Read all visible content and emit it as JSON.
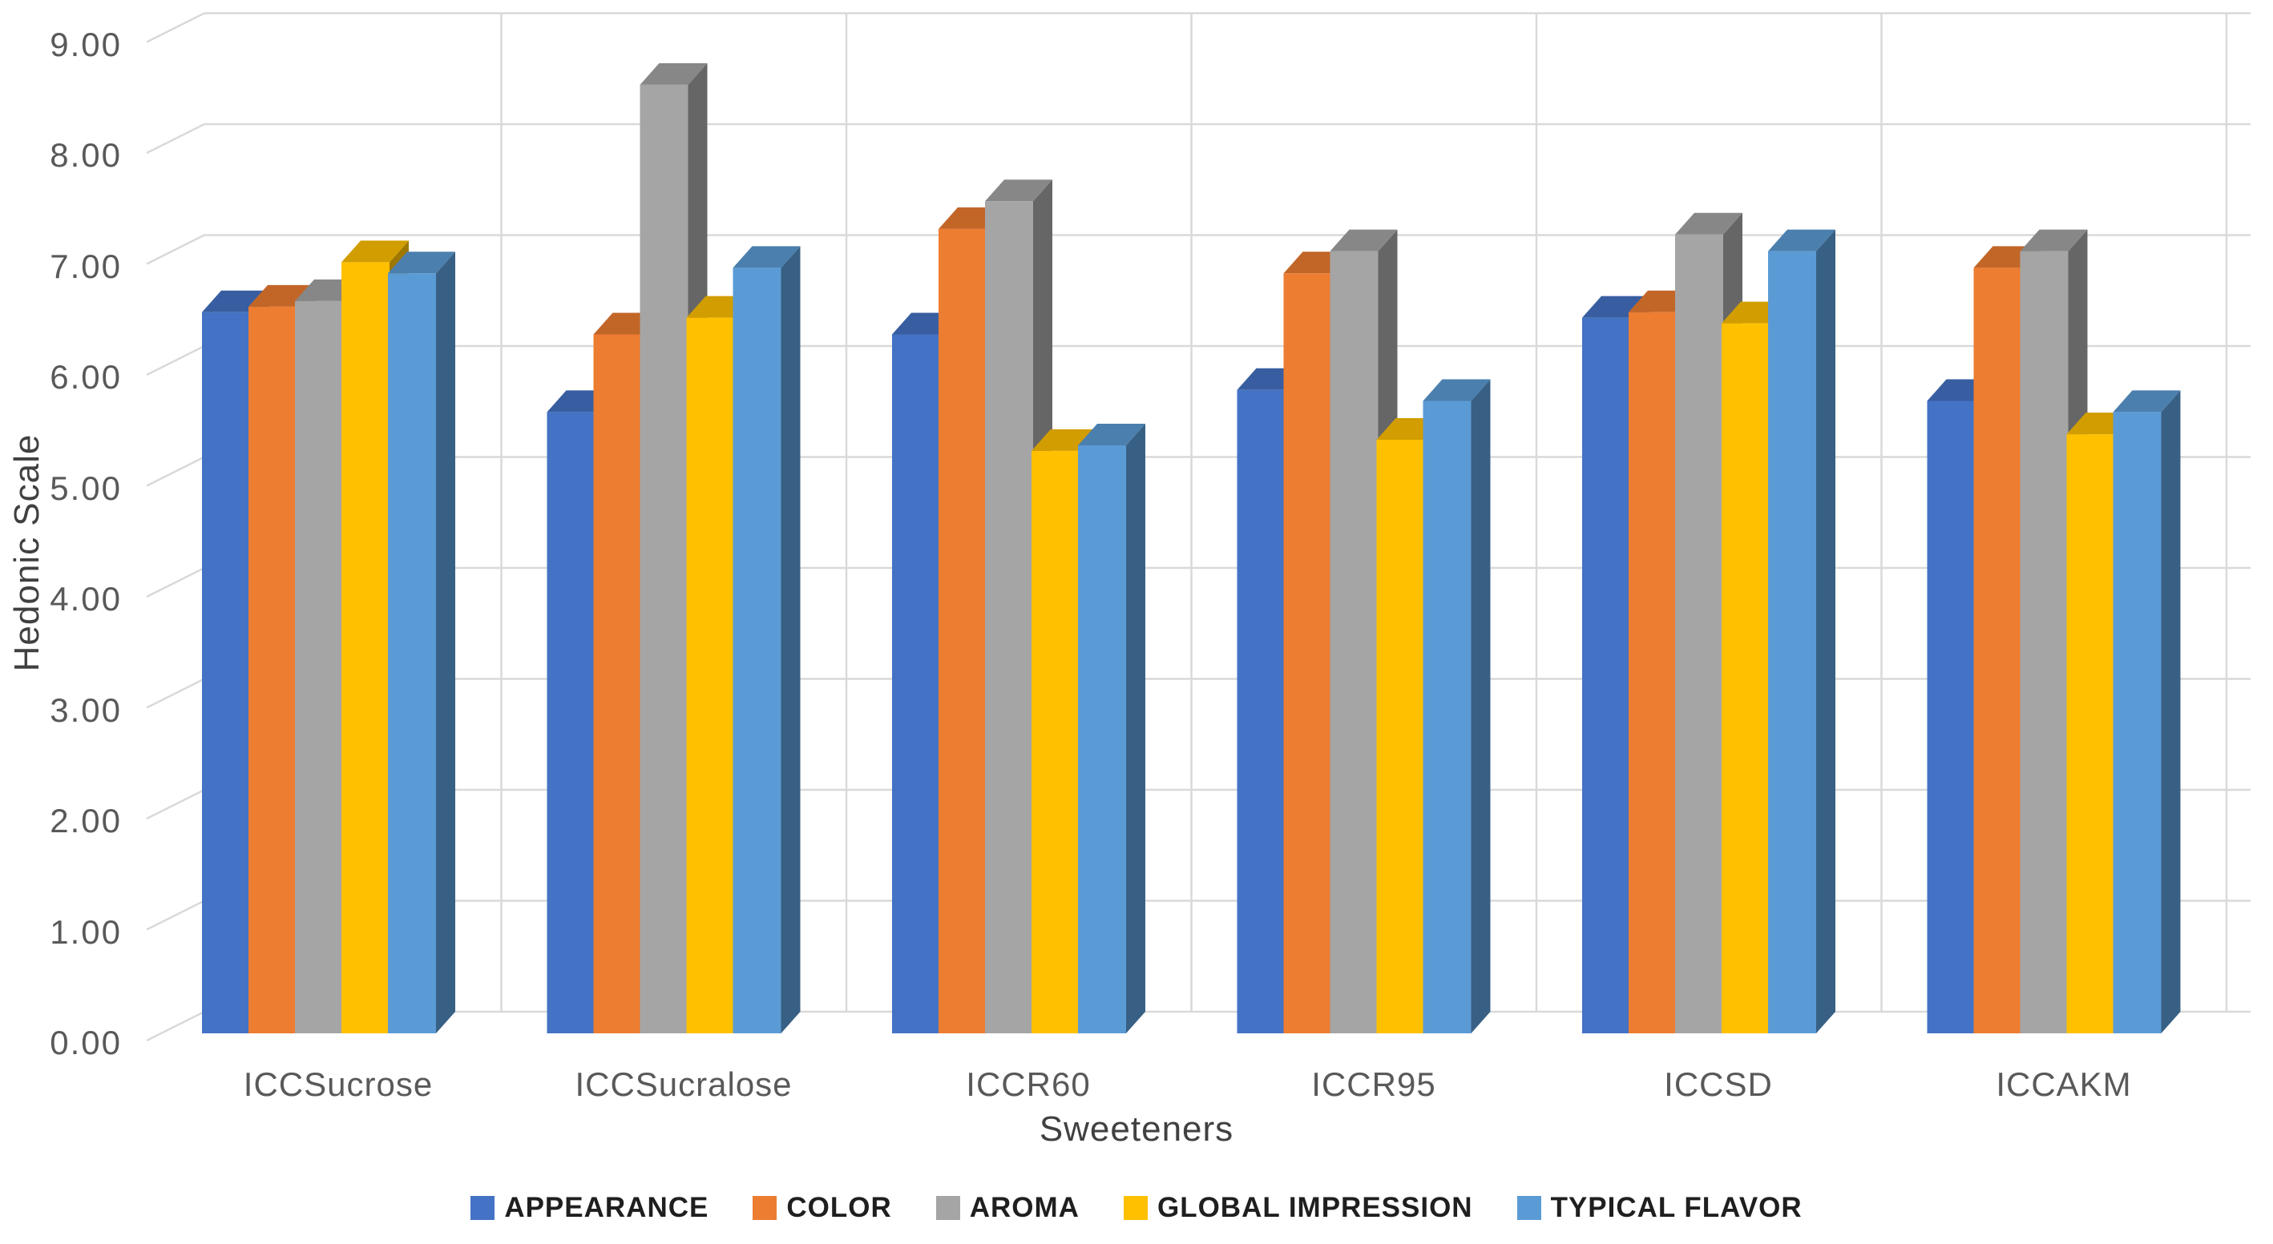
{
  "chart_data": {
    "type": "bar",
    "style": "3d-clustered-column",
    "title": "",
    "xlabel": "Sweeteners",
    "ylabel": "Hedonic Scale",
    "ylim": [
      0,
      9
    ],
    "y_tick_step": 1,
    "y_ticks": [
      "9.00",
      "8.00",
      "7.00",
      "6.00",
      "5.00",
      "4.00",
      "3.00",
      "2.00",
      "1.00",
      "0.00"
    ],
    "categories": [
      "ICCSucrose",
      "ICCSucralose",
      "ICCR60",
      "ICCR95",
      "ICCSD",
      "ICCAKM"
    ],
    "series": [
      {
        "name": "APPEARANCE",
        "color": "#4472C4",
        "top_color": "#385EA1",
        "side_color": "#2A477A",
        "values": [
          6.5,
          5.6,
          6.3,
          5.8,
          6.45,
          5.7
        ]
      },
      {
        "name": "COLOR",
        "color": "#ED7D31",
        "top_color": "#C26628",
        "side_color": "#934E1E",
        "values": [
          6.55,
          6.3,
          7.25,
          6.85,
          6.5,
          6.9
        ]
      },
      {
        "name": "AROMA",
        "color": "#A5A5A5",
        "top_color": "#878787",
        "side_color": "#666666",
        "values": [
          6.6,
          8.55,
          7.5,
          7.05,
          7.2,
          7.05
        ]
      },
      {
        "name": "GLOBAL IMPRESSION",
        "color": "#FFC000",
        "top_color": "#D19D00",
        "side_color": "#9E7700",
        "values": [
          6.95,
          6.45,
          5.25,
          5.35,
          6.4,
          5.4
        ]
      },
      {
        "name": "TYPICAL FLAVOR",
        "color": "#5B9BD5",
        "top_color": "#4B7FAE",
        "side_color": "#386084",
        "values": [
          6.85,
          6.9,
          5.3,
          5.7,
          7.05,
          5.6
        ]
      }
    ],
    "legend_position": "bottom",
    "grid": true,
    "gridline_color": "#D9D9D9",
    "axis_text_color": "#595959"
  }
}
